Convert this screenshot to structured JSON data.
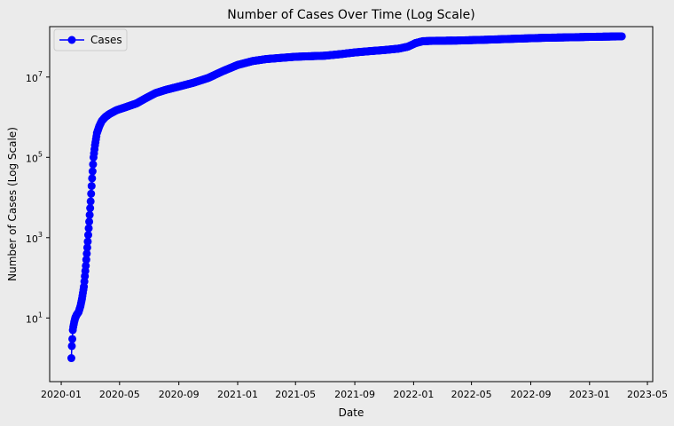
{
  "chart_data": {
    "type": "line",
    "title": "Number of Cases Over Time (Log Scale)",
    "xlabel": "Date",
    "ylabel": "Number of Cases (Log Scale)",
    "yscale": "log",
    "xlim": [
      "2019-12-08",
      "2023-05-12"
    ],
    "ylim": [
      0.26,
      180000000
    ],
    "x_ticks": [
      "2020-01",
      "2020-05",
      "2020-09",
      "2021-01",
      "2021-05",
      "2021-09",
      "2022-01",
      "2022-05",
      "2022-09",
      "2023-01",
      "2023-05"
    ],
    "x_tick_dates": [
      "2020-01-01",
      "2020-05-01",
      "2020-09-01",
      "2021-01-01",
      "2021-05-01",
      "2021-09-01",
      "2022-01-01",
      "2022-05-01",
      "2022-09-01",
      "2023-01-01",
      "2023-05-01"
    ],
    "y_ticks": [
      {
        "base": "10",
        "exp": "1",
        "value": 10
      },
      {
        "base": "10",
        "exp": "3",
        "value": 1000
      },
      {
        "base": "10",
        "exp": "5",
        "value": 100000
      },
      {
        "base": "10",
        "exp": "7",
        "value": 10000000
      }
    ],
    "grid": false,
    "legend_position": "top-left",
    "colors": {
      "series": "#0000ff",
      "background": "#ebebeb"
    },
    "series": [
      {
        "name": "Cases",
        "marker": "circle",
        "points": [
          [
            "2020-01-22",
            1
          ],
          [
            "2020-01-23",
            2
          ],
          [
            "2020-01-24",
            3
          ],
          [
            "2020-01-25",
            5
          ],
          [
            "2020-01-26",
            6
          ],
          [
            "2020-01-28",
            8
          ],
          [
            "2020-01-30",
            10
          ],
          [
            "2020-02-02",
            12
          ],
          [
            "2020-02-06",
            14
          ],
          [
            "2020-02-10",
            20
          ],
          [
            "2020-02-13",
            30
          ],
          [
            "2020-02-17",
            60
          ],
          [
            "2020-02-21",
            200
          ],
          [
            "2020-02-25",
            800
          ],
          [
            "2020-02-28",
            2500
          ],
          [
            "2020-03-02",
            8000
          ],
          [
            "2020-03-05",
            30000
          ],
          [
            "2020-03-08",
            100000
          ],
          [
            "2020-03-11",
            200000
          ],
          [
            "2020-03-15",
            400000
          ],
          [
            "2020-03-20",
            600000
          ],
          [
            "2020-03-25",
            800000
          ],
          [
            "2020-04-01",
            1000000
          ],
          [
            "2020-04-10",
            1200000
          ],
          [
            "2020-04-25",
            1500000
          ],
          [
            "2020-05-15",
            1800000
          ],
          [
            "2020-06-05",
            2200000
          ],
          [
            "2020-06-25",
            3000000
          ],
          [
            "2020-07-15",
            4000000
          ],
          [
            "2020-08-05",
            4800000
          ],
          [
            "2020-09-01",
            5800000
          ],
          [
            "2020-10-01",
            7200000
          ],
          [
            "2020-11-01",
            9500000
          ],
          [
            "2020-12-01",
            14000000
          ],
          [
            "2021-01-01",
            20000000
          ],
          [
            "2021-02-01",
            25000000
          ],
          [
            "2021-03-01",
            28000000
          ],
          [
            "2021-04-01",
            30000000
          ],
          [
            "2021-05-01",
            32000000
          ],
          [
            "2021-06-01",
            33000000
          ],
          [
            "2021-07-01",
            34000000
          ],
          [
            "2021-08-01",
            37000000
          ],
          [
            "2021-09-01",
            41000000
          ],
          [
            "2021-10-01",
            44000000
          ],
          [
            "2021-11-01",
            47000000
          ],
          [
            "2021-12-01",
            51000000
          ],
          [
            "2021-12-20",
            57000000
          ],
          [
            "2022-01-05",
            70000000
          ],
          [
            "2022-01-20",
            78000000
          ],
          [
            "2022-02-15",
            80000000
          ],
          [
            "2022-04-01",
            81000000
          ],
          [
            "2022-06-01",
            85000000
          ],
          [
            "2022-08-01",
            90000000
          ],
          [
            "2022-10-01",
            95000000
          ],
          [
            "2022-12-01",
            98000000
          ],
          [
            "2023-01-01",
            100000000
          ],
          [
            "2023-03-09",
            103000000
          ]
        ]
      }
    ]
  }
}
